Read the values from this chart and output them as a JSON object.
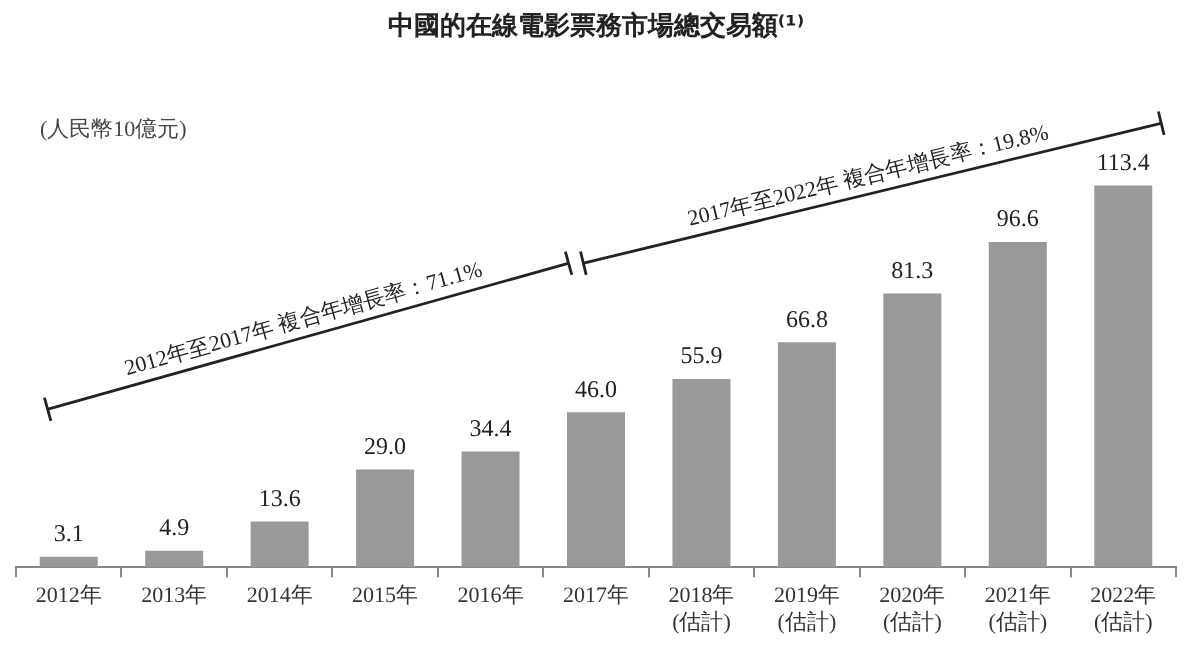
{
  "chart_data": {
    "type": "bar",
    "title": "中國的在線電影票務市場總交易額⁽¹⁾",
    "subtitle": "(人民幣10億元)",
    "categories": [
      "2012年",
      "2013年",
      "2014年",
      "2015年",
      "2016年",
      "2017年",
      "2018年\n(估計)",
      "2019年\n(估計)",
      "2020年\n(估計)",
      "2021年\n(估計)",
      "2022年\n(估計)"
    ],
    "values": [
      3.1,
      4.9,
      13.6,
      29.0,
      34.4,
      46.0,
      55.9,
      66.8,
      81.3,
      96.6,
      113.4
    ],
    "value_labels": [
      "3.1",
      "4.9",
      "13.6",
      "29.0",
      "34.4",
      "46.0",
      "55.9",
      "66.8",
      "81.3",
      "96.6",
      "113.4"
    ],
    "color": "#999999",
    "data_labels": true,
    "grid": false,
    "legend": false,
    "annotations": [
      "2012年至2017年 複合年增長率：71.1%",
      "2017年至2022年 複合年增長率：19.8%"
    ]
  }
}
